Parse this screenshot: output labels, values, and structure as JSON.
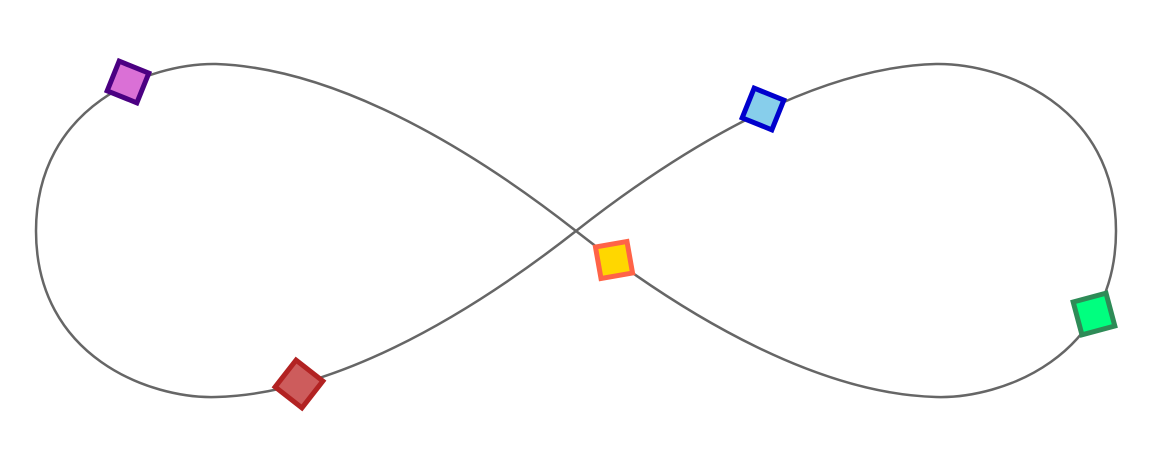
{
  "diagram": {
    "curve": {
      "shape": "figure-eight-lemniscate",
      "stroke_color": "#666666"
    },
    "markers": [
      {
        "id": "purple",
        "shape": "rotated-square",
        "fill": "#DA70D6",
        "stroke": "#4B0082"
      },
      {
        "id": "blue",
        "shape": "rotated-square",
        "fill": "#87CEEB",
        "stroke": "#0000CD"
      },
      {
        "id": "yellow",
        "shape": "rotated-square",
        "fill": "#FFD700",
        "stroke": "#FF6347"
      },
      {
        "id": "green",
        "shape": "rotated-square",
        "fill": "#00FF7F",
        "stroke": "#2E8B57"
      },
      {
        "id": "red",
        "shape": "rotated-square",
        "fill": "#CD5C5C",
        "stroke": "#B22222"
      }
    ]
  }
}
